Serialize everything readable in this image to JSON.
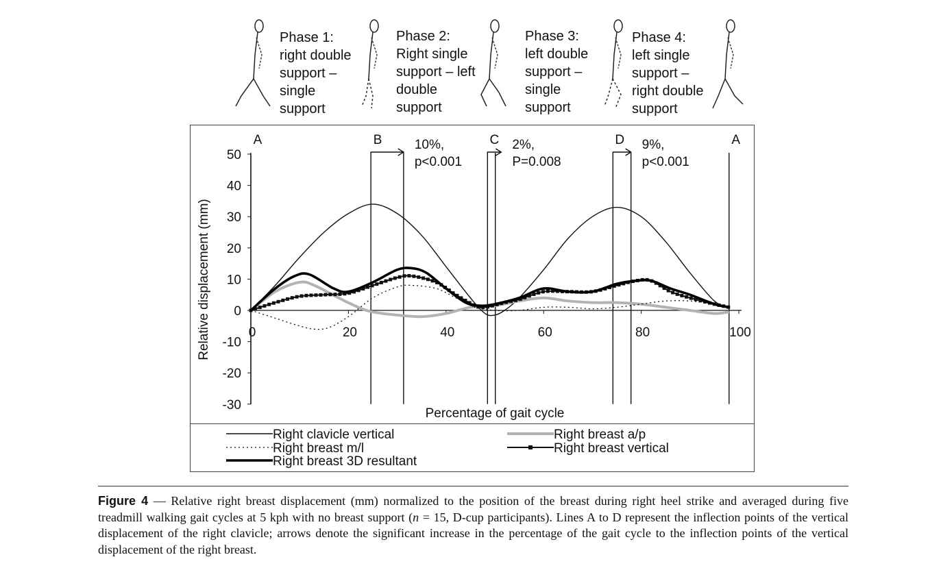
{
  "phases": [
    {
      "label": "Phase 1:\nright double\nsupport –\nsingle\nsupport"
    },
    {
      "label": "Phase 2:\nRight single\nsupport – left\ndouble\nsupport"
    },
    {
      "label": "Phase 3:\nleft double\nsupport –\nsingle\nsupport"
    },
    {
      "label": "Phase 4:\nleft single\nsupport –\nright double\nsupport"
    }
  ],
  "caption": {
    "figure_label": "Figure 4",
    "text_1": " — Relative right breast displacement (mm) normalized to the position of the breast during right heel strike and averaged during five treadmill walking gait cycles at 5 kph with no breast support (",
    "n_italic": "n",
    "text_2": " = 15, D-cup participants). Lines A to D represent the inflection points of the vertical displacement of the right clavicle; arrows denote the significant increase in the percentage of the gait cycle to the inflection points of the vertical displacement of the right breast."
  },
  "chart_data": {
    "type": "line",
    "title": "",
    "xlabel": "Percentage of gait cycle",
    "ylabel": "Relative displacement (mm)",
    "xlim": [
      0,
      100
    ],
    "ylim": [
      -30,
      50
    ],
    "xticks": [
      0,
      20,
      40,
      60,
      80,
      100
    ],
    "yticks": [
      50,
      40,
      30,
      20,
      10,
      0,
      -10,
      -20,
      -30
    ],
    "grid": false,
    "legend_position": "bottom",
    "series": [
      {
        "name": "Right clavicle vertical",
        "style": "thin-solid",
        "color": "#111111",
        "x": [
          0,
          5,
          10,
          15,
          20,
          25,
          30,
          35,
          40,
          45,
          48,
          50,
          52,
          55,
          60,
          65,
          70,
          75,
          80,
          85,
          90,
          95,
          98
        ],
        "y": [
          0,
          8,
          17,
          25,
          31,
          34,
          31,
          24,
          14,
          4,
          -1,
          -1.5,
          0,
          4,
          13,
          23,
          30,
          33,
          30,
          22,
          12,
          3,
          1
        ]
      },
      {
        "name": "Right breast a/p",
        "style": "thick-gray",
        "color": "#b0b0b0",
        "x": [
          0,
          5,
          10,
          13,
          18,
          22,
          25,
          30,
          35,
          40,
          45,
          50,
          55,
          60,
          65,
          70,
          75,
          80,
          85,
          90,
          95,
          98
        ],
        "y": [
          0,
          6,
          9,
          8,
          4,
          1,
          -0.5,
          -1.5,
          -2,
          -1,
          1,
          1.5,
          3,
          4,
          3,
          2.5,
          2.5,
          2,
          1,
          0,
          -1,
          -0.5
        ]
      },
      {
        "name": "Right breast m/l",
        "style": "dotted",
        "color": "#111111",
        "x": [
          0,
          5,
          10,
          13,
          16,
          20,
          25,
          30,
          33,
          38,
          42,
          46,
          50,
          55,
          60,
          65,
          70,
          75,
          80,
          85,
          90,
          95,
          98
        ],
        "y": [
          0,
          -2.5,
          -5,
          -6,
          -5.5,
          -2,
          4,
          7.5,
          8,
          7,
          4,
          1,
          0,
          0,
          1,
          1,
          0.5,
          1,
          2,
          3,
          3,
          2,
          1
        ]
      },
      {
        "name": "Right breast vertical",
        "style": "square-markers",
        "color": "#111111",
        "x": [
          0,
          5,
          10,
          15,
          20,
          25,
          30,
          33,
          38,
          42,
          46,
          48,
          52,
          55,
          60,
          65,
          70,
          75,
          79,
          82,
          86,
          90,
          95,
          98
        ],
        "y": [
          0,
          2.5,
          4.5,
          5,
          5.5,
          8,
          10.5,
          11,
          9,
          5,
          1.5,
          1,
          2.5,
          3.5,
          6,
          6,
          6,
          8,
          9.5,
          9.5,
          6,
          4,
          2,
          1
        ]
      },
      {
        "name": "Right breast 3D resultant",
        "style": "thick-solid",
        "color": "#000000",
        "x": [
          0,
          5,
          9,
          12,
          17,
          20,
          25,
          30,
          33,
          36,
          40,
          44,
          47,
          50,
          55,
          60,
          65,
          70,
          75,
          79,
          82,
          86,
          90,
          95,
          98
        ],
        "y": [
          0,
          7,
          11,
          11.5,
          7,
          6,
          9,
          13,
          13.5,
          12,
          7,
          2.5,
          1.5,
          2,
          4,
          7,
          6,
          6,
          8.5,
          9.5,
          9.5,
          7,
          5,
          2,
          1
        ]
      }
    ],
    "vertical_lines": [
      {
        "label": "A",
        "x": 0
      },
      {
        "label": "B",
        "x": 24.6
      },
      {
        "label": "",
        "x": 31.3
      },
      {
        "label": "C",
        "x": 48.5
      },
      {
        "label": "",
        "x": 50.1
      },
      {
        "label": "D",
        "x": 74.2
      },
      {
        "label": "",
        "x": 77.9
      },
      {
        "label": "A",
        "x": 98
      }
    ],
    "annotations": [
      {
        "from": 24.6,
        "to": 31.3,
        "text_1": "10%,",
        "text_2": "p<0.001"
      },
      {
        "from": 48.5,
        "to": 50.1,
        "text_1": "2%,",
        "text_2": "P=0.008"
      },
      {
        "from": 74.2,
        "to": 77.9,
        "text_1": "9%,",
        "text_2": "p<0.001"
      }
    ]
  }
}
